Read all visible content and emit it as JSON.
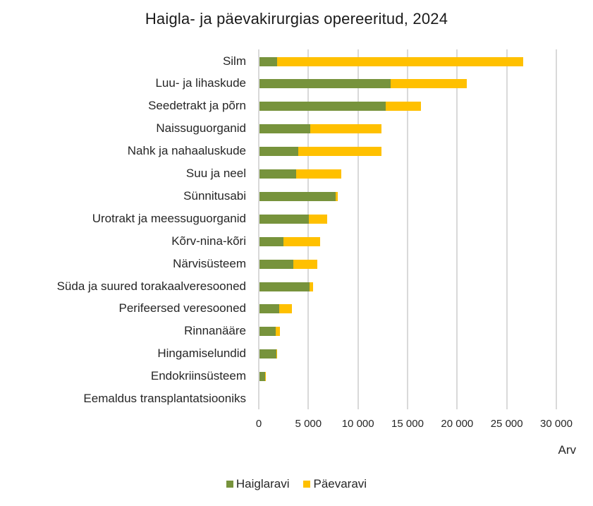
{
  "chart_data": {
    "type": "bar",
    "orientation": "horizontal",
    "stacked": true,
    "title": "Haigla- ja päevakirurgias opereeritud, 2024",
    "xlabel": "Arv",
    "ylabel": "",
    "xlim": [
      0,
      30000
    ],
    "x_ticks": [
      "0",
      "5 000",
      "10 000",
      "15 000",
      "20 000",
      "25 000",
      "30 000"
    ],
    "x_tick_values": [
      0,
      5000,
      10000,
      15000,
      20000,
      25000,
      30000
    ],
    "grid": "vertical",
    "legend_position": "bottom",
    "categories": [
      "Silm",
      "Luu- ja lihaskude",
      "Seedetrakt ja põrn",
      "Naissuguorganid",
      "Nahk ja nahaaluskude",
      "Suu ja neel",
      "Sünnitusabi",
      "Urotrakt ja meessuguorganid",
      "Kõrv-nina-kõri",
      "Närvisüsteem",
      "Süda ja suured torakaalveresooned",
      "Perifeersed veresooned",
      "Rinnanääre",
      "Hingamiselundid",
      "Endokriinsüsteem",
      "Eemaldus transplantatsiooniks"
    ],
    "series": [
      {
        "name": "Haiglaravi",
        "color": "#77933c",
        "values": [
          1800,
          13200,
          12700,
          5100,
          3900,
          3700,
          7700,
          5000,
          2400,
          3400,
          5050,
          2000,
          1650,
          1700,
          570,
          0
        ]
      },
      {
        "name": "Päevaravi",
        "color": "#ffc000",
        "values": [
          24800,
          7700,
          3600,
          7200,
          8400,
          4550,
          200,
          1850,
          3700,
          2450,
          350,
          1270,
          400,
          80,
          70,
          0
        ]
      }
    ]
  },
  "colors": {
    "haiglaravi": "#77933c",
    "paevaravi": "#ffc000",
    "grid": "#d9d9d9"
  }
}
